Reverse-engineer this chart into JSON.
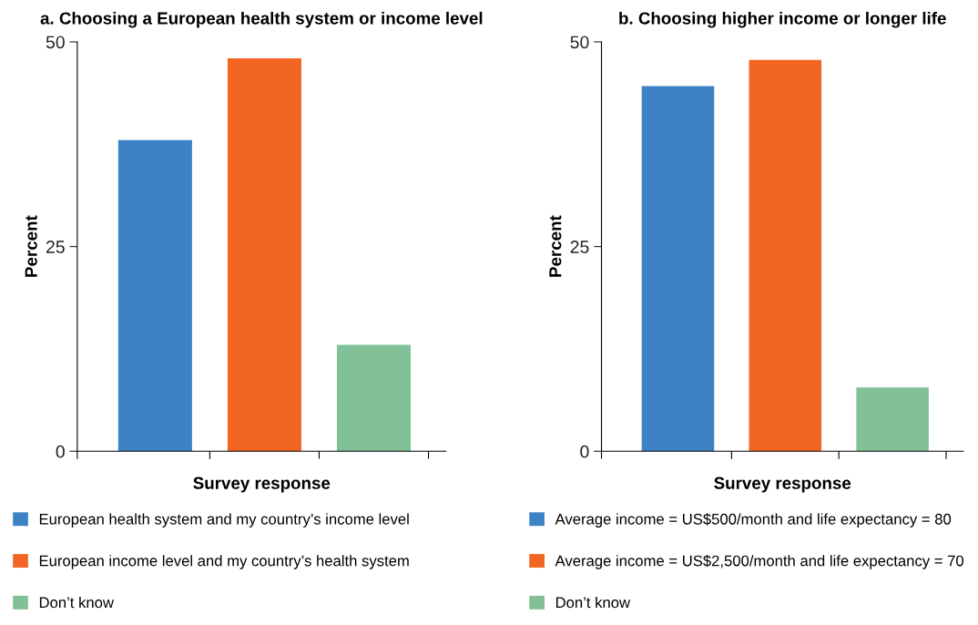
{
  "chart_data": [
    {
      "type": "bar",
      "title": "a. Choosing a European health system or income level",
      "xlabel": "Survey response",
      "ylabel": "Percent",
      "categories": [
        null,
        null,
        null
      ],
      "ylim": [
        0,
        50
      ],
      "yticks": [
        0,
        25,
        50
      ],
      "grid": false,
      "legend": "bottom",
      "series": [
        {
          "name": "European health system and my country’s income level",
          "color": "#3d82c4",
          "values": [
            38,
            null,
            null
          ]
        },
        {
          "name": "European income level and my country’s health system",
          "color": "#f26522",
          "values": [
            null,
            48,
            null
          ]
        },
        {
          "name": "Don’t know",
          "color": "#82c197",
          "values": [
            null,
            null,
            13
          ]
        }
      ]
    },
    {
      "type": "bar",
      "title": "b. Choosing higher income or longer life",
      "xlabel": "Survey response",
      "ylabel": "Percent",
      "categories": [
        null,
        null,
        null
      ],
      "ylim": [
        0,
        50
      ],
      "yticks": [
        0,
        25,
        50
      ],
      "grid": false,
      "legend": "bottom",
      "series": [
        {
          "name": "Average income = US$500/month and life expectancy = 80",
          "color": "#3d82c4",
          "values": [
            44.6,
            null,
            null
          ]
        },
        {
          "name": "Average income = US$2,500/month and life expectancy = 70",
          "color": "#f26522",
          "values": [
            null,
            47.8,
            null
          ]
        },
        {
          "name": "Don’t know",
          "color": "#82c197",
          "values": [
            null,
            null,
            7.8
          ]
        }
      ]
    }
  ]
}
